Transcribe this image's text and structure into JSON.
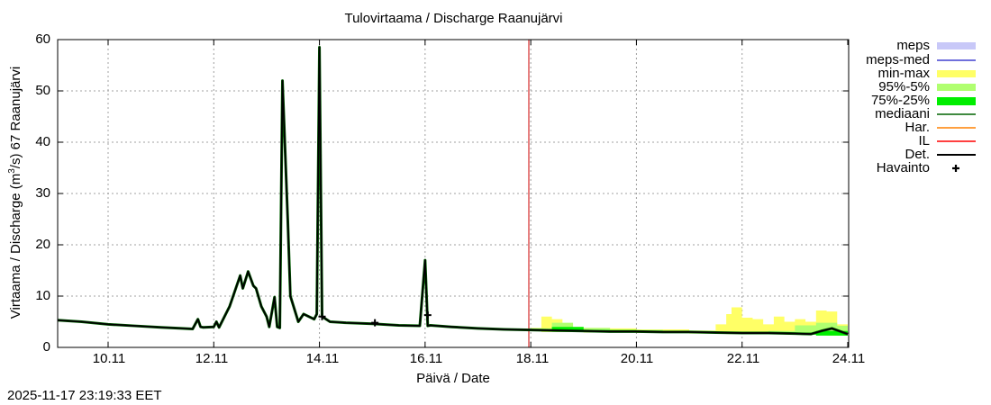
{
  "chart_data": {
    "type": "area",
    "title": "Tulovirtaama / Discharge  Raanujärvi",
    "xlabel": "Päivä / Date",
    "ylabel": "Virtaama / Discharge (m³/s)  67 Raanujärvi",
    "ylabel_parts": {
      "pre": "Virtaama / Discharge (m",
      "sup": "3",
      "post": "/s)  67 Raanujärvi"
    },
    "ylim": [
      0,
      60
    ],
    "yticks": [
      "0",
      "10",
      "20",
      "30",
      "40",
      "50",
      "60"
    ],
    "xlim": [
      "9.11",
      "24.11"
    ],
    "xticks": [
      "10.11",
      "12.11",
      "14.11",
      "16.11",
      "18.11",
      "20.11",
      "22.11",
      "24.11"
    ],
    "grid": true,
    "legend_position": "right",
    "forecast_start": "18.11",
    "timestamp": "2025-11-17 23:19:33 EET",
    "legend": [
      {
        "label": "meps",
        "type": "band",
        "color": "#c8c8f8"
      },
      {
        "label": "meps-med",
        "type": "line",
        "color": "#4040d0"
      },
      {
        "label": "min-max",
        "type": "band",
        "color": "#ffff66"
      },
      {
        "label": "95%-5%",
        "type": "band",
        "color": "#b0ff70"
      },
      {
        "label": "75%-25%",
        "type": "band",
        "color": "#00ee00"
      },
      {
        "label": "mediaani",
        "type": "line",
        "color": "#006400"
      },
      {
        "label": "Har.",
        "type": "line",
        "color": "#ff8000"
      },
      {
        "label": "IL",
        "type": "line",
        "color": "#ff0000"
      },
      {
        "label": "Det.",
        "type": "line",
        "color": "#000000"
      },
      {
        "label": "Havainto",
        "type": "marker",
        "color": "#000000"
      }
    ],
    "series": [
      {
        "name": "Det.",
        "x": [
          9.0,
          9.5,
          10.0,
          10.5,
          11.0,
          11.4,
          11.6,
          11.7,
          11.75,
          11.8,
          12.0,
          12.05,
          12.1,
          12.3,
          12.5,
          12.55,
          12.65,
          12.75,
          12.8,
          12.9,
          13.0,
          13.05,
          13.15,
          13.2,
          13.25,
          13.3,
          13.4,
          13.45,
          13.6,
          13.7,
          13.9,
          13.95,
          14.0,
          14.05,
          14.2,
          14.5,
          15.0,
          15.5,
          15.9,
          16.0,
          16.05,
          16.1,
          16.5,
          17.0,
          17.5,
          18.0,
          18.5,
          19.0,
          19.5,
          20.0,
          20.5,
          21.0,
          21.5,
          22.0,
          22.5,
          23.0,
          23.3,
          23.5,
          23.7,
          24.0
        ],
        "y": [
          5.3,
          5.0,
          4.5,
          4.2,
          3.9,
          3.7,
          3.6,
          5.5,
          4.0,
          3.9,
          4.0,
          5.0,
          3.9,
          8.0,
          14.0,
          11.5,
          14.8,
          12.0,
          11.5,
          8.0,
          6.0,
          4.0,
          9.8,
          4.0,
          3.8,
          52.0,
          25.0,
          10.0,
          5.0,
          6.5,
          5.5,
          6.5,
          58.5,
          6.0,
          5.0,
          4.8,
          4.6,
          4.3,
          4.2,
          17.0,
          4.2,
          4.3,
          4.0,
          3.7,
          3.5,
          3.4,
          3.3,
          3.2,
          3.1,
          3.1,
          3.0,
          3.0,
          2.9,
          2.8,
          2.8,
          2.7,
          2.6,
          3.2,
          3.7,
          2.6
        ]
      },
      {
        "name": "min-max",
        "x": [
          18.0,
          18.2,
          18.4,
          18.6,
          18.8,
          19.0,
          19.5,
          20.0,
          20.5,
          21.0,
          21.3,
          21.5,
          21.7,
          21.8,
          22.0,
          22.2,
          22.4,
          22.6,
          22.8,
          23.0,
          23.2,
          23.4,
          23.6,
          23.8,
          24.0
        ],
        "ymin": [
          3.2,
          3.0,
          3.0,
          3.0,
          3.0,
          2.9,
          2.9,
          2.8,
          2.8,
          2.7,
          2.7,
          2.7,
          2.6,
          2.6,
          2.6,
          2.6,
          2.6,
          2.6,
          2.5,
          2.5,
          2.5,
          2.4,
          2.3,
          2.3,
          2.3
        ],
        "ymax": [
          3.8,
          6.0,
          5.5,
          4.5,
          4.0,
          3.8,
          3.7,
          3.5,
          3.5,
          3.3,
          3.3,
          4.5,
          6.5,
          7.8,
          5.8,
          5.5,
          4.5,
          6.0,
          5.0,
          5.5,
          5.0,
          7.2,
          7.0,
          4.5,
          5.5
        ]
      },
      {
        "name": "95%-5%",
        "x": [
          18.0,
          18.4,
          18.8,
          19.5,
          20.5,
          21.5,
          22.5,
          23.0,
          23.4,
          23.8,
          24.0
        ],
        "ymin": [
          3.2,
          3.0,
          3.0,
          2.9,
          2.8,
          2.7,
          2.6,
          2.5,
          2.4,
          2.3,
          2.3
        ],
        "ymax": [
          3.7,
          4.8,
          3.8,
          3.4,
          3.2,
          3.1,
          3.2,
          4.3,
          4.8,
          4.2,
          4.8
        ]
      },
      {
        "name": "75%-25%",
        "x": [
          18.0,
          18.4,
          19.0,
          20.0,
          21.0,
          22.0,
          23.0,
          23.4,
          24.0
        ],
        "ymin": [
          3.2,
          3.1,
          3.0,
          2.9,
          2.8,
          2.7,
          2.5,
          2.3,
          2.3
        ],
        "ymax": [
          3.5,
          4.0,
          3.4,
          3.2,
          3.0,
          2.9,
          2.9,
          3.2,
          3.2
        ]
      },
      {
        "name": "Havainto",
        "x": [
          14.05,
          15.05,
          16.05
        ],
        "y": [
          6.0,
          4.8,
          6.3
        ]
      }
    ]
  }
}
